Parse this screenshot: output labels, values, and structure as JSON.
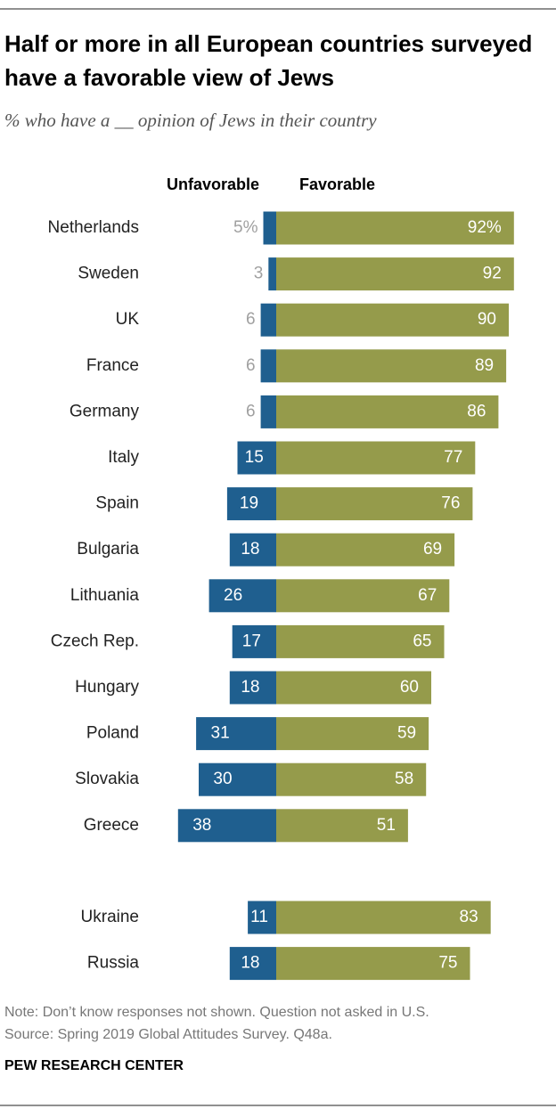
{
  "chart_data": {
    "type": "diverging_bar",
    "title": "Half or more in all European countries surveyed have a favorable view of Jews",
    "subtitle": "% who have a __ opinion of Jews in their country",
    "categories": [
      "Netherlands",
      "Sweden",
      "UK",
      "France",
      "Germany",
      "Italy",
      "Spain",
      "Bulgaria",
      "Lithuania",
      "Czech Rep.",
      "Hungary",
      "Poland",
      "Slovakia",
      "Greece",
      null,
      "Ukraine",
      "Russia"
    ],
    "series": [
      {
        "name": "Unfavorable",
        "color": "#1f5f8f",
        "direction": "left",
        "values": [
          5,
          3,
          6,
          6,
          6,
          15,
          19,
          18,
          26,
          17,
          18,
          31,
          30,
          38,
          null,
          11,
          18
        ],
        "value_labels": [
          "5%",
          "3",
          "6",
          "6",
          "6",
          "15",
          "19",
          "18",
          "26",
          "17",
          "18",
          "31",
          "30",
          "38",
          null,
          "11",
          "18"
        ]
      },
      {
        "name": "Favorable",
        "color": "#959b4b",
        "direction": "right",
        "values": [
          92,
          92,
          90,
          89,
          86,
          77,
          76,
          69,
          67,
          65,
          60,
          59,
          58,
          51,
          null,
          83,
          75
        ],
        "value_labels": [
          "92%",
          "92",
          "90",
          "89",
          "86",
          "77",
          "76",
          "69",
          "67",
          "65",
          "60",
          "59",
          "58",
          "51",
          null,
          "83",
          "75"
        ]
      }
    ],
    "note": "Note: Don’t know responses not shown. Question not asked in U.S.",
    "source": "Source: Spring 2019 Global Attitudes Survey. Q48a.",
    "footer": "PEW RESEARCH CENTER"
  }
}
